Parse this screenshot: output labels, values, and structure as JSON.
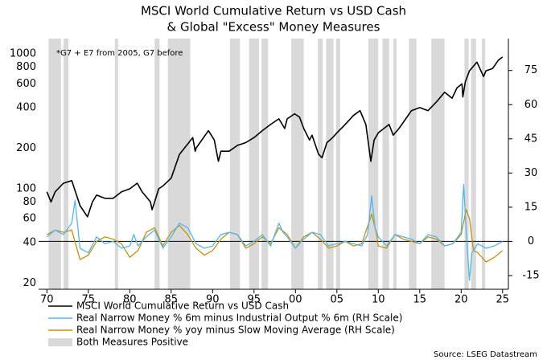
{
  "chart_data": {
    "type": "line",
    "title": "MSCI World Cumulative Return vs USD Cash",
    "subtitle": "& Global \"Excess\" Money Measures",
    "annotation": "*G7 + E7 from 2005, G7 before",
    "source": "Source: LSEG Datastream",
    "log_y": true,
    "xlim": [
      1969,
      2025.7
    ],
    "xticks": [
      {
        "value": 1970,
        "label": "70"
      },
      {
        "value": 1975,
        "label": "75"
      },
      {
        "value": 1980,
        "label": "80"
      },
      {
        "value": 1985,
        "label": "85"
      },
      {
        "value": 1990,
        "label": "90"
      },
      {
        "value": 1995,
        "label": "95"
      },
      {
        "value": 2000,
        "label": "00"
      },
      {
        "value": 2005,
        "label": "05"
      },
      {
        "value": 2010,
        "label": "10"
      },
      {
        "value": 2015,
        "label": "15"
      },
      {
        "value": 2020,
        "label": "20"
      },
      {
        "value": 2025,
        "label": "25"
      }
    ],
    "ylim": [
      18,
      1300
    ],
    "yticks": [
      20,
      40,
      60,
      80,
      100,
      200,
      400,
      600,
      800,
      1000
    ],
    "y2lim": [
      -21,
      89
    ],
    "y2ticks": [
      -15,
      0,
      15,
      30,
      45,
      60,
      75
    ],
    "shading": {
      "name": "Both Measures Positive",
      "color": "#d9d9d9",
      "periods": [
        [
          1970.2,
          1971.7
        ],
        [
          1972.0,
          1972.6
        ],
        [
          1978.2,
          1978.6
        ],
        [
          1983.0,
          1983.6
        ],
        [
          1984.6,
          1987.3
        ],
        [
          1992.1,
          1993.3
        ],
        [
          1994.4,
          1995.6
        ],
        [
          1995.9,
          1996.7
        ],
        [
          1999.5,
          2001.0
        ],
        [
          2002.7,
          2003.3
        ],
        [
          2003.7,
          2004.6
        ],
        [
          2004.9,
          2005.4
        ],
        [
          2008.8,
          2010.0
        ],
        [
          2010.5,
          2011.3
        ],
        [
          2011.8,
          2012.2
        ],
        [
          2013.7,
          2014.6
        ],
        [
          2016.4,
          2018.0
        ],
        [
          2020.4,
          2020.9
        ],
        [
          2021.2,
          2021.8
        ],
        [
          2022.5,
          2022.9
        ]
      ]
    },
    "series": [
      {
        "name": "MSCI World Cumulative Return vs USD Cash",
        "color": "#000000",
        "axis": "y",
        "x": [
          1970,
          1970.5,
          1971,
          1972,
          1973,
          1974,
          1974.9,
          1975.5,
          1976,
          1977,
          1978,
          1979,
          1980,
          1980.9,
          1981.5,
          1982.5,
          1982.7,
          1983.5,
          1984,
          1985,
          1986,
          1987.6,
          1987.9,
          1988,
          1989.5,
          1990.2,
          1990.7,
          1991,
          1992,
          1993,
          1994,
          1995,
          1996,
          1997,
          1998,
          1998.7,
          1999,
          1999.9,
          2000.5,
          2001,
          2001.7,
          2002,
          2002.8,
          2003.2,
          2003.8,
          2004.5,
          2005,
          2006,
          2007,
          2007.8,
          2008.5,
          2009.1,
          2009.5,
          2010,
          2011.3,
          2011.8,
          2012.5,
          2013,
          2014,
          2015,
          2016,
          2017,
          2018,
          2018.9,
          2019.5,
          2020.1,
          2020.2,
          2020.5,
          2021,
          2021.9,
          2022.7,
          2023,
          2023.8,
          2024.5,
          2025
        ],
        "values": [
          95,
          80,
          95,
          110,
          115,
          75,
          62,
          80,
          90,
          85,
          85,
          95,
          100,
          110,
          95,
          80,
          70,
          100,
          105,
          120,
          180,
          240,
          190,
          200,
          270,
          230,
          160,
          190,
          190,
          210,
          220,
          240,
          270,
          300,
          330,
          280,
          330,
          360,
          340,
          280,
          230,
          250,
          180,
          170,
          220,
          240,
          260,
          300,
          350,
          380,
          300,
          160,
          230,
          260,
          300,
          250,
          280,
          310,
          380,
          400,
          380,
          440,
          520,
          470,
          560,
          600,
          480,
          620,
          750,
          870,
          680,
          750,
          780,
          900,
          950
        ]
      },
      {
        "name": "Real Narrow Money % 6m minus Industrial Output % 6m (RH Scale)",
        "color": "#4db8f0",
        "axis": "y2",
        "x": [
          1970,
          1971,
          1972,
          1973,
          1973.4,
          1974,
          1975,
          1976,
          1977,
          1978,
          1979,
          1980,
          1980.5,
          1981,
          1982,
          1983,
          1984,
          1985,
          1986,
          1987,
          1988,
          1989,
          1990,
          1991,
          1992,
          1993,
          1994,
          1995,
          1996,
          1997,
          1998,
          1998.5,
          1999,
          2000,
          2001,
          2002,
          2003,
          2004,
          2005,
          2006,
          2007,
          2008,
          2008.7,
          2009.2,
          2009.6,
          2010,
          2011,
          2012,
          2013,
          2014,
          2015,
          2016,
          2017,
          2018,
          2019,
          2020,
          2020.3,
          2020.6,
          2021,
          2021.3,
          2022,
          2023,
          2024,
          2025
        ],
        "values": [
          2,
          5,
          3,
          8,
          18,
          -3,
          -5,
          2,
          -1,
          0,
          -3,
          -2,
          3,
          -2,
          2,
          5,
          -3,
          2,
          8,
          6,
          -1,
          -3,
          -2,
          3,
          4,
          3,
          -2,
          0,
          3,
          -2,
          8,
          4,
          2,
          -3,
          1,
          4,
          3,
          -2,
          -1,
          0,
          -1,
          -2,
          3,
          20,
          6,
          2,
          -2,
          3,
          2,
          1,
          -1,
          3,
          2,
          -2,
          -1,
          4,
          25,
          5,
          -17,
          -5,
          -1,
          -3,
          -2,
          0
        ]
      },
      {
        "name": "Real Narrow Money % yoy minus Slow Moving Average (RH Scale)",
        "color": "#c8900a",
        "axis": "y2",
        "x": [
          1970,
          1971,
          1972,
          1973,
          1974,
          1975,
          1976,
          1977,
          1978,
          1979,
          1980,
          1981,
          1982,
          1983,
          1984,
          1985,
          1986,
          1987,
          1988,
          1989,
          1990,
          1991,
          1992,
          1993,
          1994,
          1995,
          1996,
          1997,
          1998,
          1999,
          2000,
          2001,
          2002,
          2003,
          2004,
          2005,
          2006,
          2007,
          2008,
          2009.2,
          2009.8,
          2010,
          2011,
          2012,
          2013,
          2014,
          2015,
          2016,
          2017,
          2018,
          2019,
          2020,
          2020.6,
          2021,
          2021.5,
          2022,
          2023,
          2024,
          2025
        ],
        "values": [
          3,
          5,
          4,
          5,
          -8,
          -6,
          0,
          2,
          1,
          -1,
          -7,
          -4,
          4,
          6,
          -2,
          4,
          7,
          3,
          -3,
          -6,
          -4,
          1,
          4,
          3,
          -3,
          -1,
          2,
          -1,
          6,
          3,
          -3,
          2,
          4,
          1,
          -3,
          -2,
          0,
          -2,
          -1,
          12,
          3,
          -2,
          -3,
          3,
          1,
          0,
          -1,
          2,
          1,
          -2,
          -1,
          3,
          14,
          10,
          -4,
          -5,
          -9,
          -7,
          -4
        ]
      }
    ]
  }
}
